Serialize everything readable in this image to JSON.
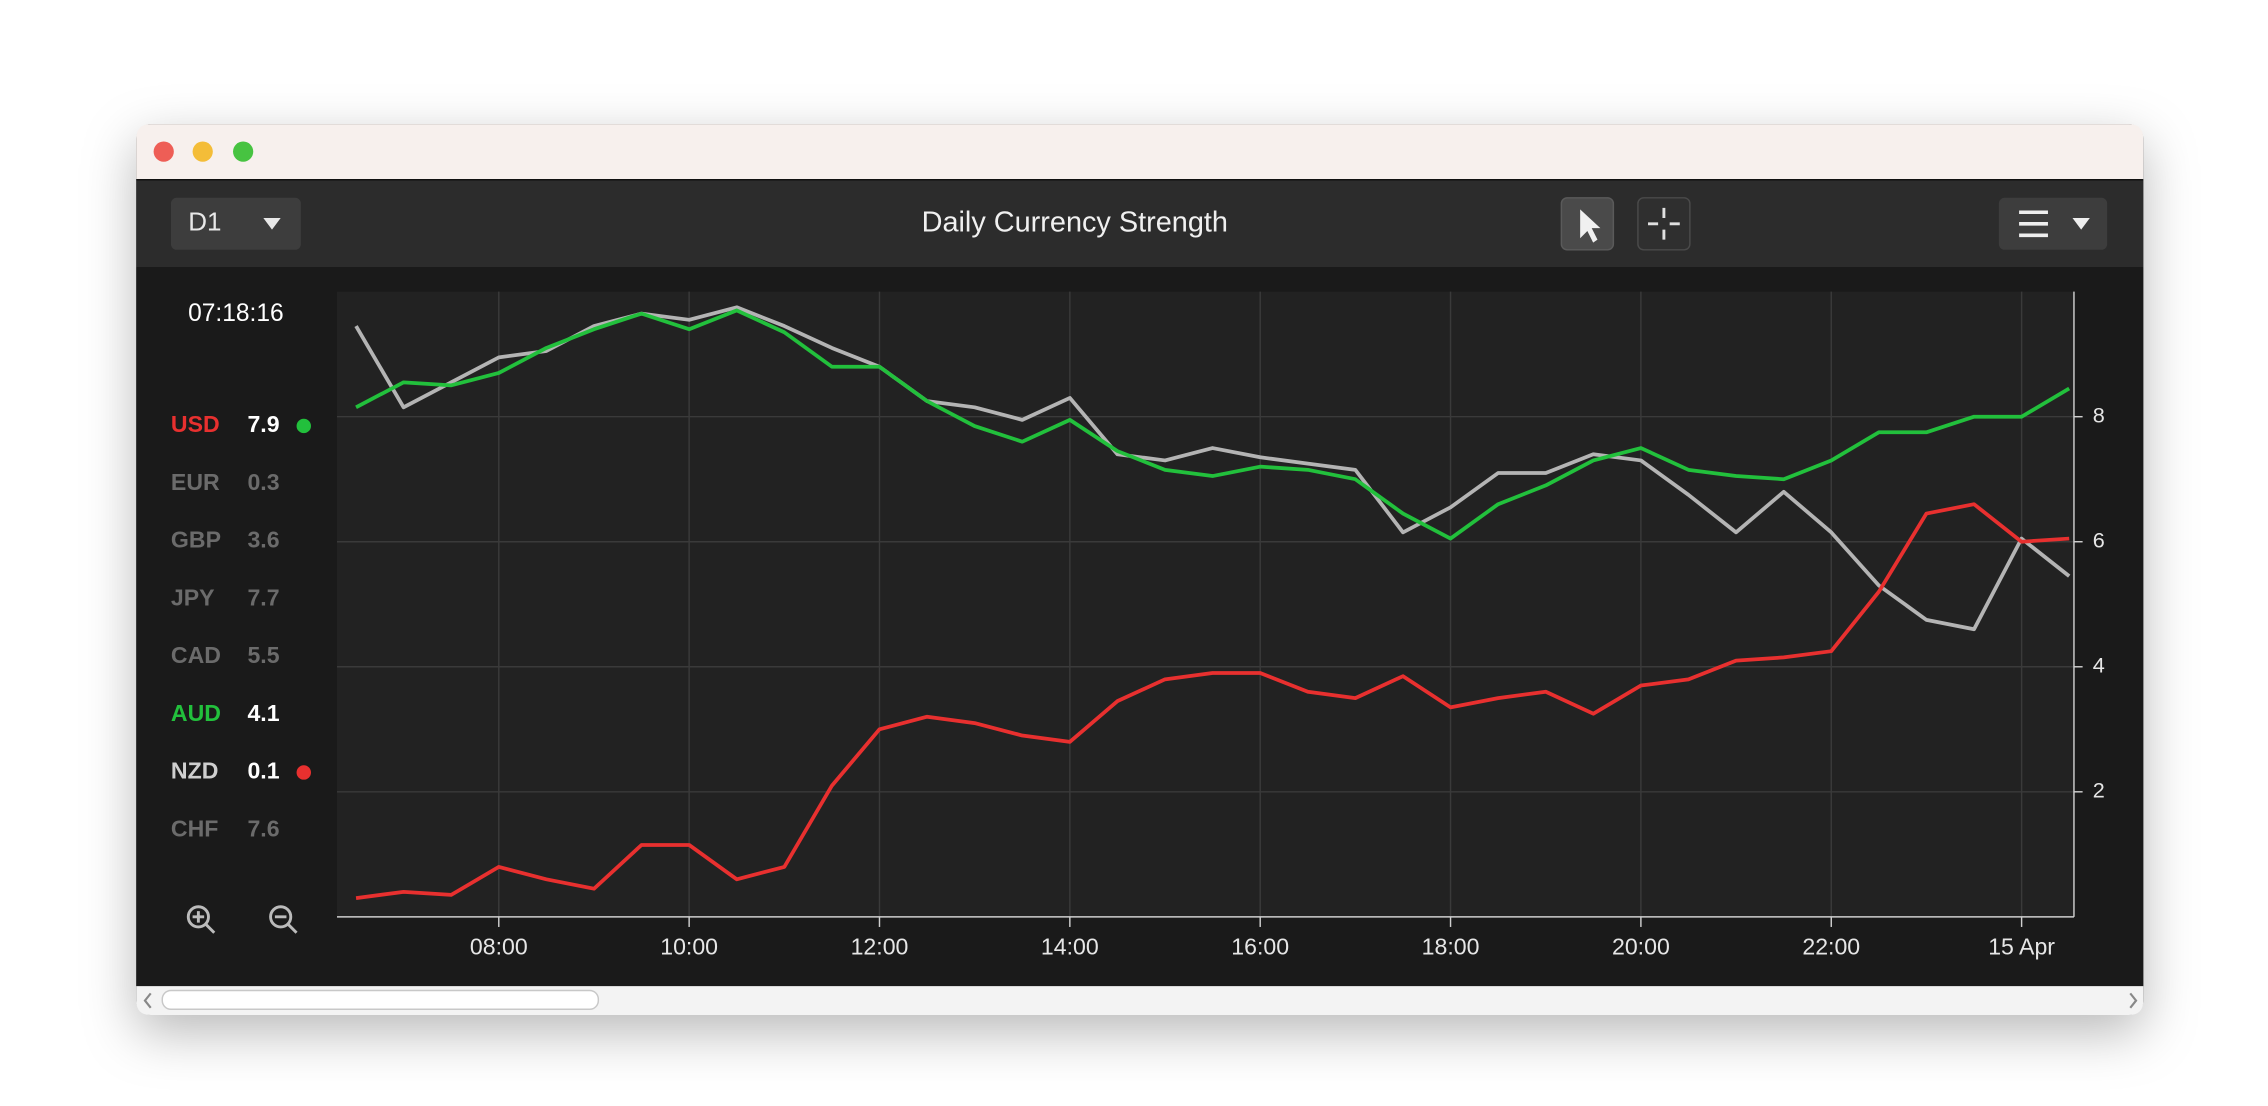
{
  "toolbar": {
    "timeframe": "D1",
    "title": "Daily Currency Strength"
  },
  "clock": "07:18:16",
  "currencies": [
    {
      "name": "USD",
      "value": 7.9,
      "color": "#e8302f",
      "value_color": "#ffffff",
      "dot": "#22c03c"
    },
    {
      "name": "EUR",
      "value": 0.3,
      "color": "#6b6b6b",
      "value_color": "#6b6b6b"
    },
    {
      "name": "GBP",
      "value": 3.6,
      "color": "#6b6b6b",
      "value_color": "#6b6b6b"
    },
    {
      "name": "JPY",
      "value": 7.7,
      "color": "#6b6b6b",
      "value_color": "#6b6b6b"
    },
    {
      "name": "CAD",
      "value": 5.5,
      "color": "#6b6b6b",
      "value_color": "#6b6b6b"
    },
    {
      "name": "AUD",
      "value": 4.1,
      "color": "#22c03c",
      "value_color": "#ffffff"
    },
    {
      "name": "NZD",
      "value": 0.1,
      "color": "#cfcfcf",
      "value_color": "#ffffff",
      "dot": "#e8302f"
    },
    {
      "name": "CHF",
      "value": 7.6,
      "color": "#6b6b6b",
      "value_color": "#6b6b6b"
    }
  ],
  "chart_data": {
    "type": "line",
    "x": [
      6.5,
      7,
      7.5,
      8,
      8.5,
      9,
      9.5,
      10,
      10.5,
      11,
      11.5,
      12,
      12.5,
      13,
      13.5,
      14,
      14.5,
      15,
      15.5,
      16,
      16.5,
      17,
      17.5,
      18,
      18.5,
      19,
      19.5,
      20,
      20.5,
      21,
      21.5,
      22,
      22.5,
      23,
      23.5,
      24,
      24.5
    ],
    "xlim": [
      6.3,
      24.55
    ],
    "xticks": [
      {
        "value": 8,
        "label": "08:00"
      },
      {
        "value": 10,
        "label": "10:00"
      },
      {
        "value": 12,
        "label": "12:00"
      },
      {
        "value": 14,
        "label": "14:00"
      },
      {
        "value": 16,
        "label": "16:00"
      },
      {
        "value": 18,
        "label": "18:00"
      },
      {
        "value": 20,
        "label": "20:00"
      },
      {
        "value": 22,
        "label": "22:00"
      },
      {
        "value": 24,
        "label": "15 Apr"
      }
    ],
    "ylim": [
      0,
      10
    ],
    "yticks": [
      2,
      4,
      6,
      8
    ],
    "grid": true,
    "series": [
      {
        "name": "USD",
        "color": "#e8302f",
        "values": [
          0.3,
          0.4,
          0.35,
          0.8,
          0.6,
          0.45,
          1.15,
          1.15,
          0.6,
          0.8,
          2.1,
          3.0,
          3.2,
          3.1,
          2.9,
          2.8,
          3.45,
          3.8,
          3.9,
          3.9,
          3.6,
          3.5,
          3.85,
          3.35,
          3.5,
          3.6,
          3.25,
          3.7,
          3.8,
          4.1,
          4.15,
          4.25,
          5.2,
          6.45,
          6.6,
          6.0,
          6.05
        ]
      },
      {
        "name": "AUD",
        "color": "#22c03c",
        "values": [
          8.15,
          8.55,
          8.5,
          8.7,
          9.1,
          9.4,
          9.65,
          9.4,
          9.7,
          9.35,
          8.8,
          8.8,
          8.25,
          7.85,
          7.6,
          7.95,
          7.45,
          7.15,
          7.05,
          7.2,
          7.15,
          7.0,
          6.45,
          6.05,
          6.6,
          6.9,
          7.3,
          7.5,
          7.15,
          7.05,
          7.0,
          7.3,
          7.75,
          7.75,
          8.0,
          8.0,
          8.45
        ]
      },
      {
        "name": "NZD",
        "color": "#b4b4b4",
        "values": [
          9.45,
          8.15,
          8.55,
          8.95,
          9.05,
          9.45,
          9.65,
          9.55,
          9.75,
          9.45,
          9.1,
          8.8,
          8.25,
          8.15,
          7.95,
          8.3,
          7.4,
          7.3,
          7.5,
          7.35,
          7.25,
          7.15,
          6.15,
          6.55,
          7.1,
          7.1,
          7.4,
          7.3,
          6.75,
          6.15,
          6.8,
          6.15,
          5.3,
          4.75,
          4.6,
          6.05,
          5.45
        ]
      }
    ]
  }
}
